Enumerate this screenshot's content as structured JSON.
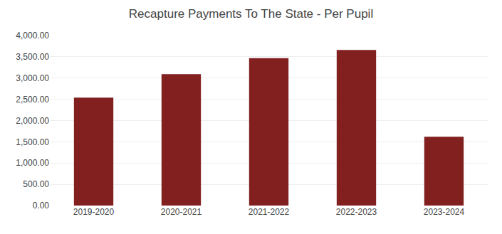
{
  "chart_data": {
    "type": "bar",
    "title": "Recapture Payments To The State - Per Pupil",
    "categories": [
      "2019-2020",
      "2020-2021",
      "2021-2022",
      "2022-2023",
      "2023-2024"
    ],
    "values": [
      2540,
      3090,
      3470,
      3660,
      1620
    ],
    "color": "#822020",
    "ylim": [
      0,
      4000
    ],
    "yticks": [
      {
        "value": 0,
        "label": "0.00"
      },
      {
        "value": 500,
        "label": "500.00"
      },
      {
        "value": 1000,
        "label": "1,000.00"
      },
      {
        "value": 1500,
        "label": "1,500.00"
      },
      {
        "value": 2000,
        "label": "2,000.00"
      },
      {
        "value": 2500,
        "label": "2,500.00"
      },
      {
        "value": 3000,
        "label": "3,000.00"
      },
      {
        "value": 3500,
        "label": "3,500.00"
      },
      {
        "value": 4000,
        "label": "4,000.00"
      }
    ],
    "grid": true
  }
}
